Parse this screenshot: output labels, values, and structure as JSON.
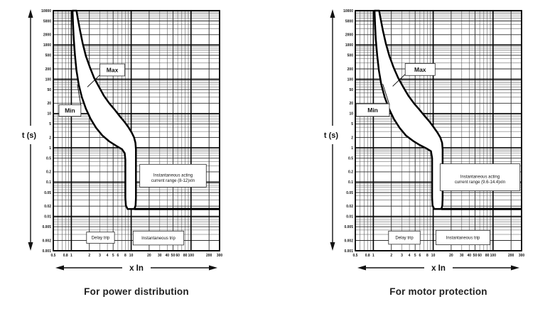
{
  "colors": {
    "grid_minor": "#555555",
    "grid_mid": "#2e2e2e",
    "grid_major": "#000000",
    "curve": "#000000",
    "band_fill": "#ffffff",
    "box_border": "#2a2a2a",
    "box_fill": "#ffffff",
    "text": "#111111"
  },
  "chart_data": [
    {
      "type": "line",
      "caption": "For power distribution",
      "xlabel": "x In",
      "ylabel": "t (s)",
      "xscale": "log",
      "yscale": "log",
      "grid": true,
      "xlim": [
        0.5,
        300
      ],
      "ylim": [
        0.001,
        10000
      ],
      "x_ticks": [
        "0.5",
        "0.8",
        "1",
        "2",
        "3",
        "4",
        "5",
        "6",
        "8",
        "10",
        "20",
        "30",
        "40",
        "50",
        "60",
        "80",
        "100",
        "200",
        "300"
      ],
      "y_ticks": [
        "10000",
        "5000",
        "2000",
        "1000",
        "500",
        "200",
        "100",
        "50",
        "20",
        "10",
        "5",
        "2",
        "1",
        "0.5",
        "0.2",
        "0.1",
        "0.05",
        "0.02",
        "0.01",
        "0.005",
        "0.002",
        "0.001"
      ],
      "instantaneous_range_xIn": [
        8,
        12
      ],
      "series": [
        {
          "name": "Min",
          "points": [
            [
              1.05,
              10000
            ],
            [
              1.07,
              4000
            ],
            [
              1.1,
              1500
            ],
            [
              1.15,
              500
            ],
            [
              1.22,
              180
            ],
            [
              1.33,
              70
            ],
            [
              1.5,
              30
            ],
            [
              1.75,
              14
            ],
            [
              2.1,
              7
            ],
            [
              2.6,
              3.8
            ],
            [
              3.3,
              2.3
            ],
            [
              4.3,
              1.55
            ],
            [
              5.6,
              1.15
            ],
            [
              7.0,
              0.92
            ],
            [
              7.8,
              0.7
            ],
            [
              8.0,
              0.45
            ],
            [
              8.0,
              0.035
            ],
            [
              8.15,
              0.021
            ],
            [
              8.7,
              0.0165
            ]
          ]
        },
        {
          "name": "Max",
          "points": [
            [
              1.22,
              10000
            ],
            [
              1.28,
              6000
            ],
            [
              1.4,
              2600
            ],
            [
              1.55,
              1100
            ],
            [
              1.75,
              480
            ],
            [
              2.05,
              220
            ],
            [
              2.4,
              110
            ],
            [
              2.9,
              60
            ],
            [
              3.5,
              33
            ],
            [
              4.3,
              20
            ],
            [
              5.3,
              13
            ],
            [
              6.4,
              8.5
            ],
            [
              7.7,
              5.8
            ],
            [
              9.0,
              4.0
            ],
            [
              10.2,
              2.8
            ],
            [
              11.2,
              2.0
            ],
            [
              11.8,
              1.4
            ],
            [
              12.0,
              0.9
            ],
            [
              12.0,
              0.035
            ],
            [
              11.85,
              0.021
            ],
            [
              11.3,
              0.0165
            ]
          ]
        }
      ],
      "instantaneous_line": {
        "t": 0.0165,
        "from_x": 11.3,
        "to_x": 300
      },
      "annotations": [
        {
          "id": "max-label",
          "text": "Max",
          "font": 8.5,
          "bold": true,
          "box": [
            0.28,
            0.222,
            0.15,
            0.05
          ],
          "leader": [
            [
              0.28,
              0.268
            ],
            [
              0.205,
              0.318
            ]
          ]
        },
        {
          "id": "min-label",
          "text": "Min",
          "font": 8.5,
          "bold": true,
          "box": [
            0.034,
            0.392,
            0.132,
            0.048
          ],
          "leader": [
            [
              0.166,
              0.396
            ],
            [
              0.145,
              0.308
            ]
          ]
        },
        {
          "id": "instantaneous-range",
          "lines": [
            "Instantaneous acting",
            "current range (8-12)xIn"
          ],
          "font": 6,
          "box": [
            0.52,
            0.64,
            0.4,
            0.095
          ]
        },
        {
          "id": "delay-trip",
          "text": "Delay trip",
          "font": 6,
          "box": [
            0.2,
            0.922,
            0.168,
            0.047
          ]
        },
        {
          "id": "instantaneous-trip",
          "text": "Instantaneous trip",
          "font": 6,
          "box": [
            0.48,
            0.918,
            0.305,
            0.058
          ]
        }
      ]
    },
    {
      "type": "line",
      "caption": "For motor protection",
      "xlabel": "x In",
      "ylabel": "t (s)",
      "xscale": "log",
      "yscale": "log",
      "grid": true,
      "xlim": [
        0.5,
        300
      ],
      "ylim": [
        0.001,
        10000
      ],
      "x_ticks": [
        "0.5",
        "0.8",
        "1",
        "2",
        "3",
        "4",
        "5",
        "6",
        "8",
        "10",
        "20",
        "30",
        "40",
        "50",
        "60",
        "80",
        "100",
        "200",
        "300"
      ],
      "y_ticks": [
        "10000",
        "5000",
        "2000",
        "1000",
        "500",
        "200",
        "100",
        "50",
        "20",
        "10",
        "5",
        "2",
        "1",
        "0.5",
        "0.2",
        "0.1",
        "0.05",
        "0.02",
        "0.01",
        "0.005",
        "0.002",
        "0.001"
      ],
      "instantaneous_range_xIn": [
        9.6,
        14.4
      ],
      "series": [
        {
          "name": "Min",
          "points": [
            [
              1.05,
              10000
            ],
            [
              1.07,
              4000
            ],
            [
              1.1,
              1500
            ],
            [
              1.16,
              500
            ],
            [
              1.24,
              180
            ],
            [
              1.36,
              70
            ],
            [
              1.55,
              30
            ],
            [
              1.82,
              14
            ],
            [
              2.2,
              7
            ],
            [
              2.75,
              3.8
            ],
            [
              3.5,
              2.3
            ],
            [
              4.6,
              1.6
            ],
            [
              6.0,
              1.2
            ],
            [
              7.6,
              0.98
            ],
            [
              9.2,
              0.8
            ],
            [
              9.6,
              0.5
            ],
            [
              9.6,
              0.035
            ],
            [
              9.75,
              0.021
            ],
            [
              10.4,
              0.0165
            ]
          ]
        },
        {
          "name": "Max",
          "points": [
            [
              1.25,
              10000
            ],
            [
              1.32,
              6000
            ],
            [
              1.45,
              2600
            ],
            [
              1.62,
              1100
            ],
            [
              1.85,
              480
            ],
            [
              2.18,
              220
            ],
            [
              2.6,
              110
            ],
            [
              3.15,
              60
            ],
            [
              3.85,
              33
            ],
            [
              4.75,
              20
            ],
            [
              5.9,
              13
            ],
            [
              7.2,
              8.5
            ],
            [
              8.7,
              5.8
            ],
            [
              10.2,
              4.0
            ],
            [
              11.8,
              2.8
            ],
            [
              13.2,
              2.0
            ],
            [
              14.1,
              1.4
            ],
            [
              14.4,
              0.9
            ],
            [
              14.4,
              0.035
            ],
            [
              14.25,
              0.021
            ],
            [
              13.7,
              0.0165
            ]
          ]
        }
      ],
      "instantaneous_line": {
        "t": 0.0165,
        "from_x": 13.7,
        "to_x": 300
      },
      "annotations": [
        {
          "id": "max-label",
          "text": "Max",
          "font": 8.5,
          "bold": true,
          "box": [
            0.3,
            0.22,
            0.18,
            0.05
          ],
          "leader": [
            [
              0.3,
              0.265
            ],
            [
              0.225,
              0.315
            ]
          ]
        },
        {
          "id": "min-label",
          "text": "Min",
          "font": 8.5,
          "bold": true,
          "box": [
            0.005,
            0.388,
            0.2,
            0.052
          ],
          "leader": [
            [
              0.205,
              0.392
            ],
            [
              0.165,
              0.305
            ]
          ]
        },
        {
          "id": "instantaneous-range",
          "lines": [
            "Instantaneous acting",
            "current range (9.6-14.4)xIn"
          ],
          "font": 6,
          "box": [
            0.51,
            0.638,
            0.48,
            0.112
          ]
        },
        {
          "id": "delay-trip",
          "text": "Delay trip",
          "font": 6,
          "box": [
            0.2,
            0.918,
            0.19,
            0.055
          ]
        },
        {
          "id": "instantaneous-trip",
          "text": "Instantaneous trip",
          "font": 6,
          "box": [
            0.485,
            0.915,
            0.325,
            0.06
          ]
        }
      ]
    }
  ]
}
